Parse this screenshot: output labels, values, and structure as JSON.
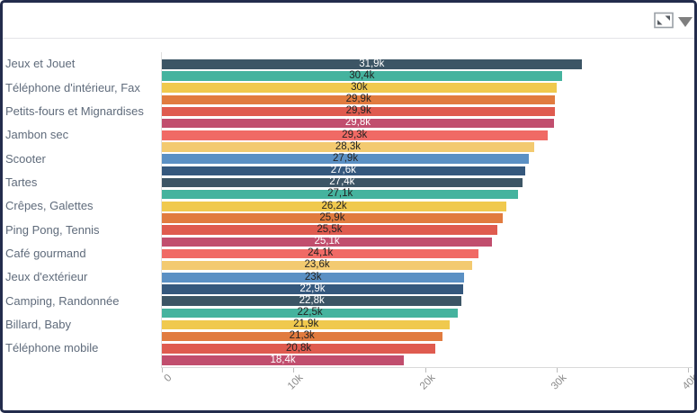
{
  "widget": {
    "background": "#ffffff",
    "border_color": "#232c4c",
    "toolbar": {
      "icons": [
        "expand-resize-icon",
        "caret-down-icon"
      ]
    }
  },
  "colors": {
    "axis_line": "#d9d9d9",
    "tick_mark": "#bbbbbb",
    "tick_label": "#8b8b8b",
    "category_label": "#5f6b7b",
    "value_label_dark": "#222222",
    "value_label_light": "#ffffff",
    "separator": "#e4e4e7",
    "icon_gray": "#7f7f7f"
  },
  "chart_data": {
    "type": "bar",
    "orientation": "horizontal",
    "title": "",
    "xlabel": "",
    "ylabel": "",
    "xlim": [
      0,
      40000
    ],
    "grid": false,
    "legend": false,
    "value_label_position": "inside-center",
    "category_label_interval": 2,
    "x_ticks": [
      {
        "label": "0",
        "value": 0
      },
      {
        "label": "10k",
        "value": 10000
      },
      {
        "label": "20k",
        "value": 20000
      },
      {
        "label": "30k",
        "value": 30000
      },
      {
        "label": "40k",
        "value": 40000
      }
    ],
    "palette": [
      "#3c5565",
      "#45b39e",
      "#f0c94e",
      "#e17b3f",
      "#df5b4f",
      "#c14e6e",
      "#f06a65",
      "#f3ca70",
      "#5b90c4",
      "#35587d"
    ],
    "white_label_palette_indices": [
      0,
      5,
      9
    ],
    "categories": [
      "Jeux et Jouet",
      "Téléphone d'intérieur, Fax",
      "Petits-fours et Mignardises",
      "Jambon sec",
      "Scooter",
      "Tartes",
      "Crêpes, Galettes",
      "Ping Pong, Tennis",
      "Café gourmand",
      "Jeux d'extérieur",
      "Camping, Randonnée",
      "Billard, Baby",
      "Téléphone mobile"
    ],
    "bars": [
      {
        "category": "Jeux et Jouet",
        "value": 31900,
        "display": "31,9k"
      },
      {
        "category": "",
        "value": 30400,
        "display": "30,4k"
      },
      {
        "category": "Téléphone d'intérieur, Fax",
        "value": 30000,
        "display": "30k"
      },
      {
        "category": "",
        "value": 29900,
        "display": "29,9k"
      },
      {
        "category": "Petits-fours et Mignardises",
        "value": 29900,
        "display": "29,9k"
      },
      {
        "category": "",
        "value": 29800,
        "display": "29,8k"
      },
      {
        "category": "Jambon sec",
        "value": 29300,
        "display": "29,3k"
      },
      {
        "category": "",
        "value": 28300,
        "display": "28,3k"
      },
      {
        "category": "Scooter",
        "value": 27900,
        "display": "27,9k"
      },
      {
        "category": "",
        "value": 27600,
        "display": "27,6k"
      },
      {
        "category": "Tartes",
        "value": 27400,
        "display": "27,4k"
      },
      {
        "category": "",
        "value": 27100,
        "display": "27,1k"
      },
      {
        "category": "Crêpes, Galettes",
        "value": 26200,
        "display": "26,2k"
      },
      {
        "category": "",
        "value": 25900,
        "display": "25,9k"
      },
      {
        "category": "Ping Pong, Tennis",
        "value": 25500,
        "display": "25,5k"
      },
      {
        "category": "",
        "value": 25100,
        "display": "25,1k"
      },
      {
        "category": "Café gourmand",
        "value": 24100,
        "display": "24,1k"
      },
      {
        "category": "",
        "value": 23600,
        "display": "23,6k"
      },
      {
        "category": "Jeux d'extérieur",
        "value": 23000,
        "display": "23k"
      },
      {
        "category": "",
        "value": 22900,
        "display": "22,9k"
      },
      {
        "category": "Camping, Randonnée",
        "value": 22800,
        "display": "22,8k"
      },
      {
        "category": "",
        "value": 22500,
        "display": "22,5k"
      },
      {
        "category": "Billard, Baby",
        "value": 21900,
        "display": "21,9k"
      },
      {
        "category": "",
        "value": 21300,
        "display": "21,3k"
      },
      {
        "category": "Téléphone mobile",
        "value": 20800,
        "display": "20,8k"
      },
      {
        "category": "",
        "value": 18400,
        "display": "18,4k"
      }
    ]
  }
}
